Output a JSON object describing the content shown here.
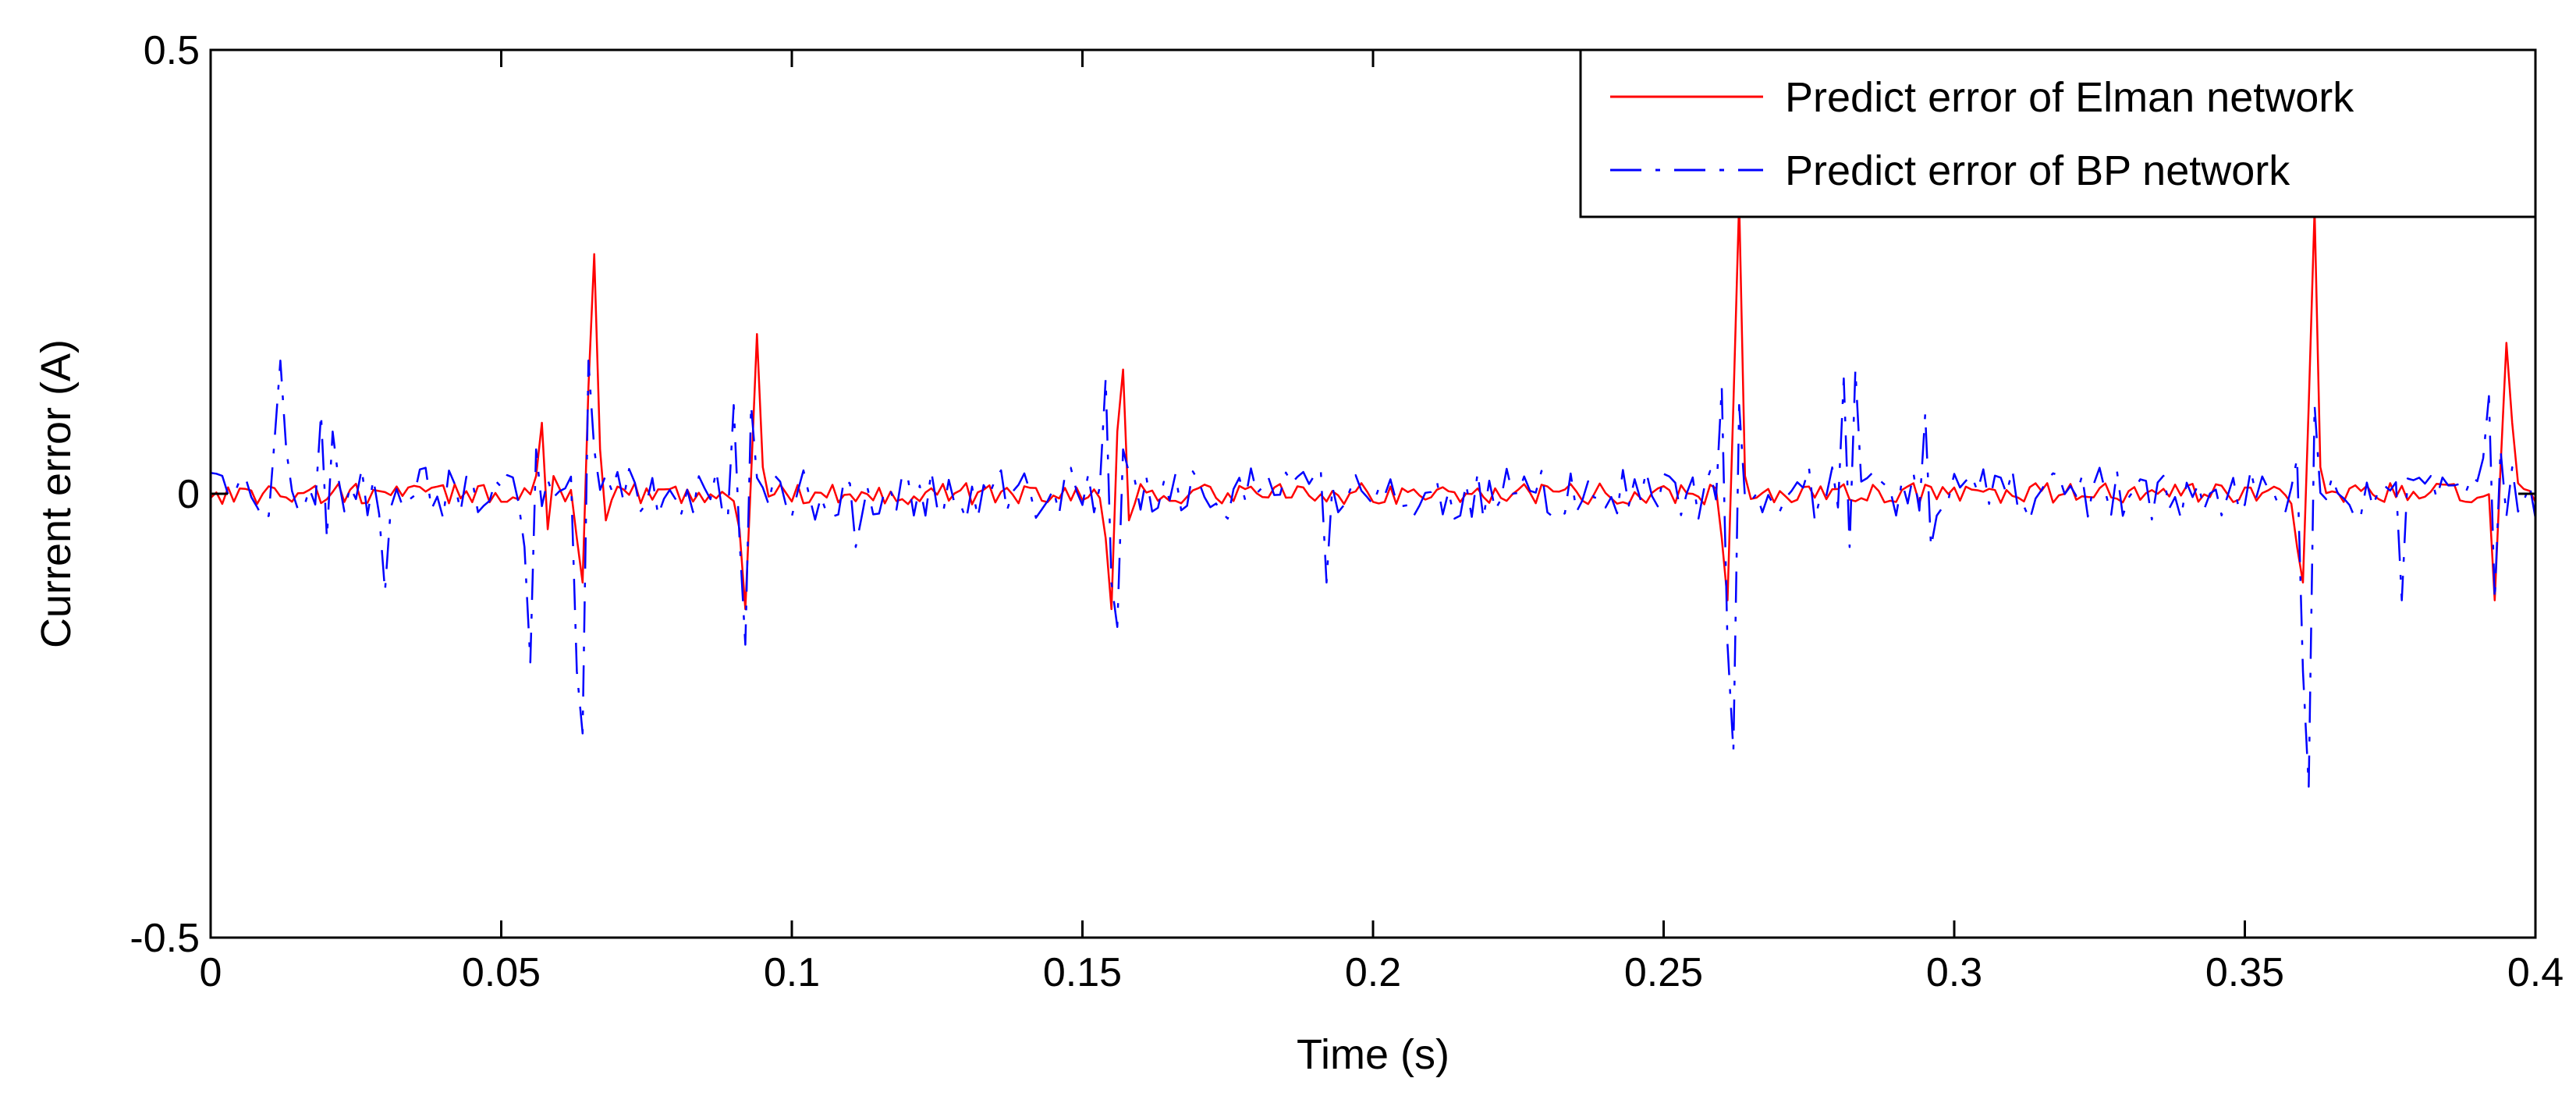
{
  "chart_data": {
    "type": "line",
    "title": "",
    "xlabel": "Time (s)",
    "ylabel": "Current error (A)",
    "xlim": [
      0,
      0.4
    ],
    "ylim": [
      -0.5,
      0.5
    ],
    "xticks": [
      0,
      0.05,
      0.1,
      0.15,
      0.2,
      0.25,
      0.3,
      0.35,
      0.4
    ],
    "xtick_labels": [
      "0",
      "0.05",
      "0.1",
      "0.15",
      "0.2",
      "0.25",
      "0.3",
      "0.35",
      "0.4"
    ],
    "yticks": [
      -0.5,
      0,
      0.5
    ],
    "ytick_labels": [
      "-0.5",
      "0",
      "0.5"
    ],
    "grid": false,
    "legend_position": "top-right",
    "sample_step": 0.001,
    "series": [
      {
        "name": "Predict error of Elman network",
        "color": "#ff0000",
        "style": "solid",
        "noise_amplitude": 0.012,
        "spikes": [
          {
            "t": 0.056,
            "values": [
              0.02,
              0.08,
              -0.04,
              0.02
            ]
          },
          {
            "t": 0.063,
            "values": [
              -0.05,
              -0.1,
              0.12,
              0.27,
              0.05,
              -0.03
            ]
          },
          {
            "t": 0.091,
            "values": [
              -0.04,
              -0.13,
              0.02,
              0.18,
              0.03
            ]
          },
          {
            "t": 0.154,
            "values": [
              -0.05,
              -0.13,
              0.07,
              0.14,
              -0.03
            ]
          },
          {
            "t": 0.26,
            "values": [
              -0.05,
              -0.12,
              0.1,
              0.33,
              0.02
            ]
          },
          {
            "t": 0.359,
            "values": [
              -0.06,
              -0.1,
              0.1,
              0.32,
              0.03
            ]
          },
          {
            "t": 0.393,
            "values": [
              -0.12,
              0.03,
              0.17,
              0.08
            ]
          }
        ]
      },
      {
        "name": "Predict error of BP network",
        "color": "#0000ff",
        "style": "dashdot",
        "noise_amplitude": 0.03,
        "spikes": [
          {
            "t": 0.011,
            "values": [
              0.06,
              0.15,
              0.05
            ]
          },
          {
            "t": 0.019,
            "values": [
              0.09,
              -0.05,
              0.07
            ]
          },
          {
            "t": 0.03,
            "values": [
              -0.11
            ]
          },
          {
            "t": 0.054,
            "values": [
              -0.06,
              -0.19,
              0.05
            ]
          },
          {
            "t": 0.063,
            "values": [
              -0.2,
              -0.27,
              0.15,
              0.05
            ]
          },
          {
            "t": 0.09,
            "values": [
              0.1,
              -0.05,
              -0.17,
              0.1
            ]
          },
          {
            "t": 0.111,
            "values": [
              -0.06
            ]
          },
          {
            "t": 0.154,
            "values": [
              0.13,
              -0.1,
              -0.15,
              0.05
            ]
          },
          {
            "t": 0.192,
            "values": [
              -0.1
            ]
          },
          {
            "t": 0.26,
            "values": [
              0.12,
              -0.17,
              -0.29,
              0.1
            ]
          },
          {
            "t": 0.281,
            "values": [
              0.13,
              -0.06,
              0.14
            ]
          },
          {
            "t": 0.295,
            "values": [
              0.09,
              -0.06
            ]
          },
          {
            "t": 0.359,
            "values": [
              0.04,
              -0.2,
              -0.33,
              0.1
            ]
          },
          {
            "t": 0.377,
            "values": [
              -0.12
            ]
          },
          {
            "t": 0.391,
            "values": [
              0.04,
              0.11,
              -0.12,
              0.05
            ]
          }
        ]
      }
    ]
  }
}
